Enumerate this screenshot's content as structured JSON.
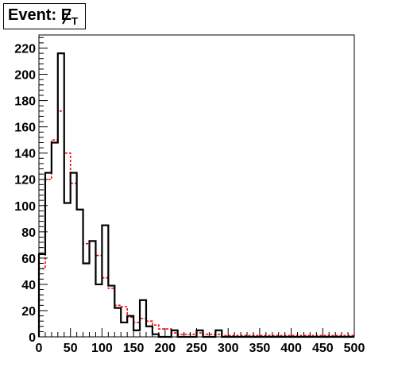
{
  "title": {
    "prefix": "Event: ",
    "variable": "E",
    "subscript": "T"
  },
  "chart_data": {
    "type": "bar",
    "title": "Event: E̸T",
    "xlabel": "",
    "ylabel": "",
    "xlim": [
      0,
      500
    ],
    "ylim": [
      0,
      230
    ],
    "bin_width": 10,
    "x_ticks": [
      0,
      50,
      100,
      150,
      200,
      250,
      300,
      350,
      400,
      450,
      500
    ],
    "y_ticks": [
      0,
      20,
      40,
      60,
      80,
      100,
      120,
      140,
      160,
      180,
      200,
      220
    ],
    "grid": false,
    "series": [
      {
        "style": "solid",
        "color": "#000000",
        "values": [
          63,
          125,
          148,
          216,
          102,
          125,
          97,
          56,
          73,
          40,
          85,
          39,
          22,
          11,
          16,
          5,
          28,
          8,
          2,
          0,
          0,
          5,
          0,
          0,
          0,
          5,
          0,
          0,
          5,
          0,
          0,
          0,
          0,
          0,
          0,
          0,
          0,
          0,
          0,
          0,
          0,
          0,
          0,
          0,
          0,
          0,
          0,
          0,
          0,
          0
        ]
      },
      {
        "style": "dashed",
        "color": "#ff0000",
        "values": [
          52,
          120,
          150,
          172,
          140,
          117,
          97,
          71,
          73,
          62,
          45,
          37,
          24,
          23,
          15,
          11,
          14,
          12,
          9,
          6,
          6,
          3,
          2,
          2,
          2,
          3,
          2,
          2,
          2,
          1,
          1,
          1,
          1,
          1,
          1,
          1,
          1,
          1,
          1,
          1,
          1,
          1,
          1,
          1,
          1,
          1,
          1,
          1,
          1,
          1
        ]
      }
    ]
  }
}
